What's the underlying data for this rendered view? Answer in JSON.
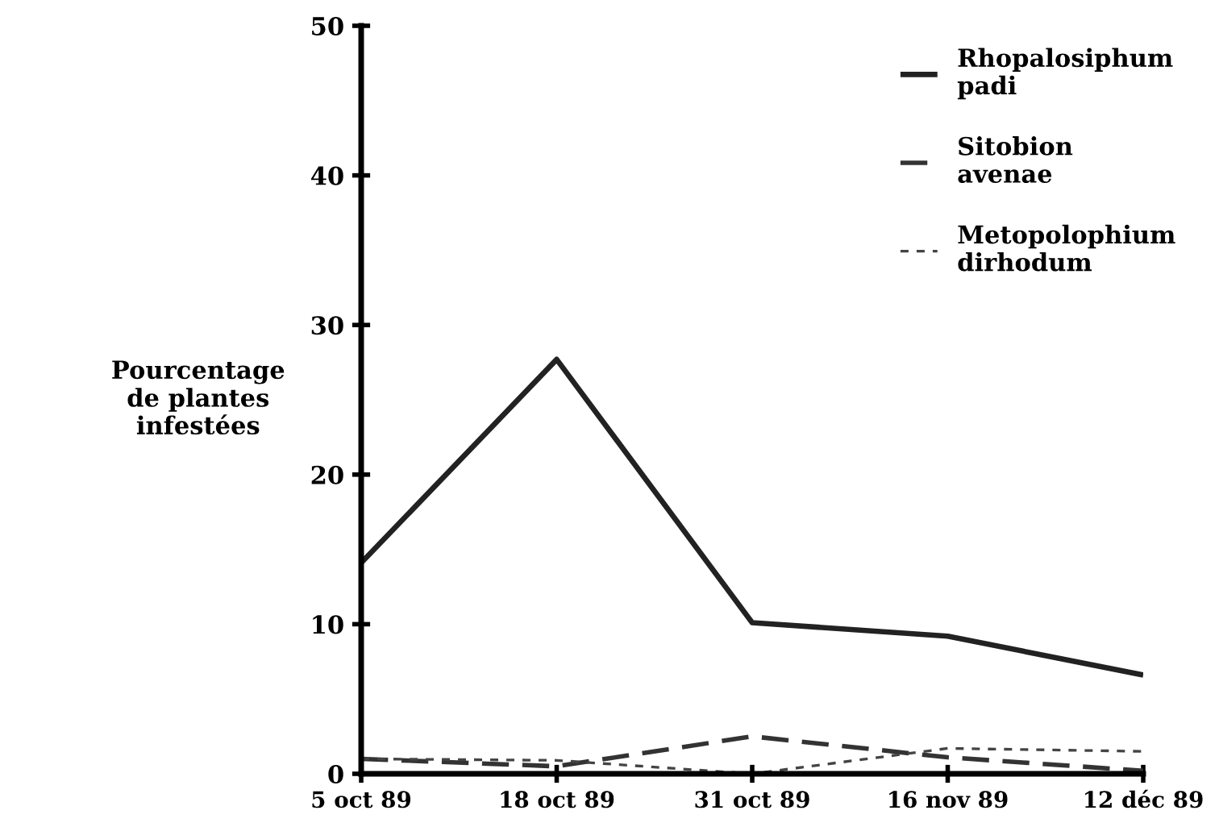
{
  "chart_data": {
    "type": "line",
    "ylabel": "Pourcentage\nde plantes\ninfestées",
    "categories": [
      "5 oct 89",
      "18 oct 89",
      "31 oct 89",
      "16 nov 89",
      "12 déc 89"
    ],
    "series": [
      {
        "name": "Rhopalosiphum\npadi",
        "color": "#222222",
        "values": [
          14.1,
          27.7,
          10.1,
          9.2,
          6.6
        ],
        "line_style": "solid"
      },
      {
        "name": "Sitobion\navenae",
        "color": "#333333",
        "values": [
          1.0,
          0.5,
          2.5,
          1.1,
          0.2
        ],
        "line_style": "dashed"
      },
      {
        "name": "Metopolophium\ndirhodum",
        "color": "#444444",
        "values": [
          1.0,
          0.9,
          0.0,
          1.7,
          1.5
        ],
        "line_style": "dotted"
      }
    ],
    "ylim": [
      0,
      50
    ],
    "yticks": [
      0,
      10,
      20,
      30,
      40,
      50
    ],
    "legend": "top right"
  }
}
